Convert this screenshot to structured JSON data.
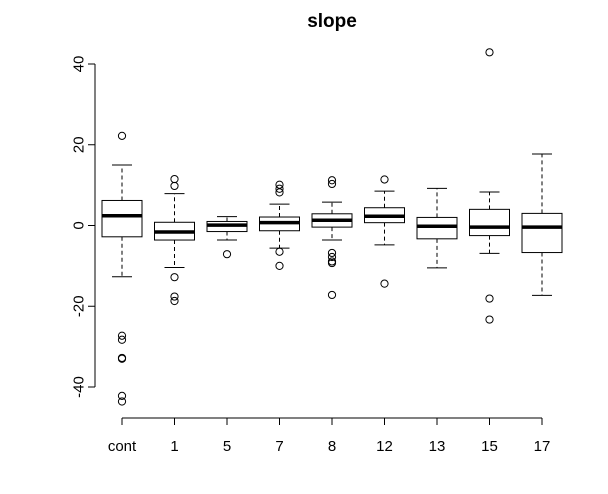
{
  "chart_data": {
    "type": "boxplot",
    "title": "slope",
    "xlabel": "",
    "ylabel": "",
    "ylim": [
      -45,
      45
    ],
    "y_ticks": [
      -40,
      -20,
      0,
      20,
      40
    ],
    "y_tick_labels": [
      "-40",
      "-20",
      "0",
      "20",
      "40"
    ],
    "categories": [
      "cont",
      "1",
      "5",
      "7",
      "8",
      "12",
      "13",
      "15",
      "17"
    ],
    "boxes": [
      {
        "category": "cont",
        "whisker_low": -12.7,
        "q1": -2.8,
        "median": 2.4,
        "q3": 6.2,
        "whisker_high": 15.0,
        "outliers": [
          22.2,
          -27.3,
          -28.3,
          -32.8,
          -33.0,
          -42.2,
          -43.6
        ]
      },
      {
        "category": "1",
        "whisker_low": -10.4,
        "q1": -3.6,
        "median": -1.6,
        "q3": 0.8,
        "whisker_high": 7.9,
        "outliers": [
          11.5,
          9.8,
          -12.8,
          -17.6,
          -18.7
        ]
      },
      {
        "category": "5",
        "whisker_low": -3.6,
        "q1": -1.5,
        "median": 0.1,
        "q3": 1.0,
        "whisker_high": 2.2,
        "outliers": [
          -7.1
        ]
      },
      {
        "category": "7",
        "whisker_low": -5.6,
        "q1": -1.3,
        "median": 0.7,
        "q3": 2.1,
        "whisker_high": 5.3,
        "outliers": [
          10.1,
          9.1,
          8.2,
          -6.5,
          -10.0
        ]
      },
      {
        "category": "8",
        "whisker_low": -3.6,
        "q1": -0.4,
        "median": 1.3,
        "q3": 2.9,
        "whisker_high": 5.8,
        "outliers": [
          11.2,
          10.3,
          -6.8,
          -7.8,
          -8.9,
          -9.3,
          -17.2
        ]
      },
      {
        "category": "12",
        "whisker_low": -4.8,
        "q1": 0.7,
        "median": 2.3,
        "q3": 4.4,
        "whisker_high": 8.5,
        "outliers": [
          11.4,
          -14.4
        ]
      },
      {
        "category": "13",
        "whisker_low": -10.5,
        "q1": -3.3,
        "median": -0.2,
        "q3": 2.0,
        "whisker_high": 9.2,
        "outliers": []
      },
      {
        "category": "15",
        "whisker_low": -6.9,
        "q1": -2.5,
        "median": -0.4,
        "q3": 4.0,
        "whisker_high": 8.3,
        "outliers": [
          42.9,
          -18.1,
          -23.3
        ]
      },
      {
        "category": "17",
        "whisker_low": -17.3,
        "q1": -6.7,
        "median": -0.4,
        "q3": 3.0,
        "whisker_high": 17.7,
        "outliers": []
      }
    ],
    "grid": false,
    "legend": "none"
  }
}
